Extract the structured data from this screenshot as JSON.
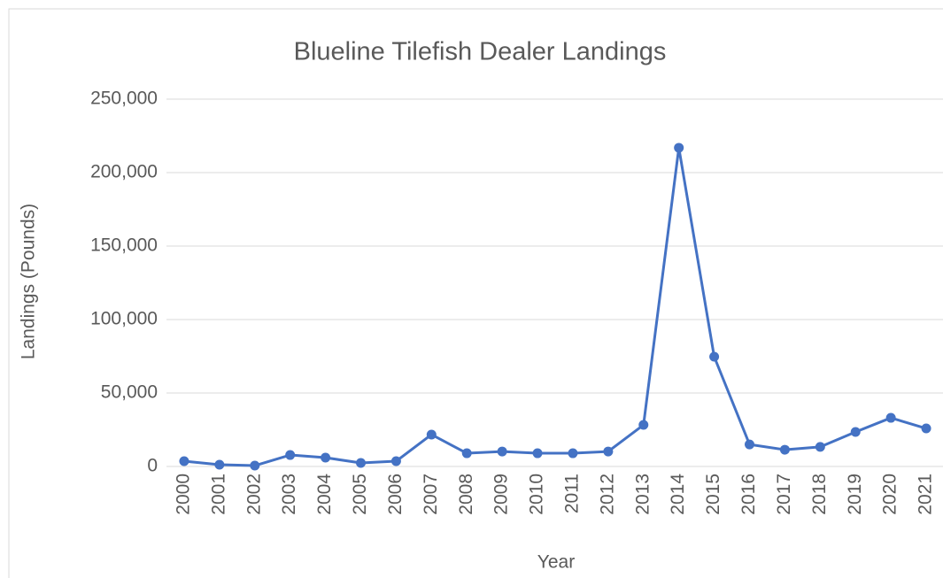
{
  "chart_data": {
    "type": "line",
    "title": "Blueline Tilefish Dealer Landings",
    "x_label": "Year",
    "y_label": "Landings (Pounds)",
    "categories": [
      "2000",
      "2001",
      "2002",
      "2003",
      "2004",
      "2005",
      "2006",
      "2007",
      "2008",
      "2009",
      "2010",
      "2011",
      "2012",
      "2013",
      "2014",
      "2015",
      "2016",
      "2017",
      "2018",
      "2019",
      "2020",
      "2021"
    ],
    "series": [
      {
        "name": "Landings",
        "color": "#4472c4",
        "values": [
          3600,
          1200,
          600,
          7800,
          6000,
          2400,
          3600,
          21700,
          9000,
          10200,
          9000,
          9000,
          10200,
          28300,
          216900,
          74700,
          15000,
          11400,
          13300,
          23500,
          33100,
          25900
        ]
      }
    ],
    "ylim": [
      0,
      250000
    ],
    "yticks": [
      0,
      {
        "value": 50000,
        "label": "50,000"
      },
      {
        "value": 100000,
        "label": "100,000"
      },
      {
        "value": 150000,
        "label": "150,000"
      },
      {
        "value": 200000,
        "label": "200,000"
      },
      {
        "value": 250000,
        "label": "250,000"
      }
    ],
    "grid": true
  }
}
